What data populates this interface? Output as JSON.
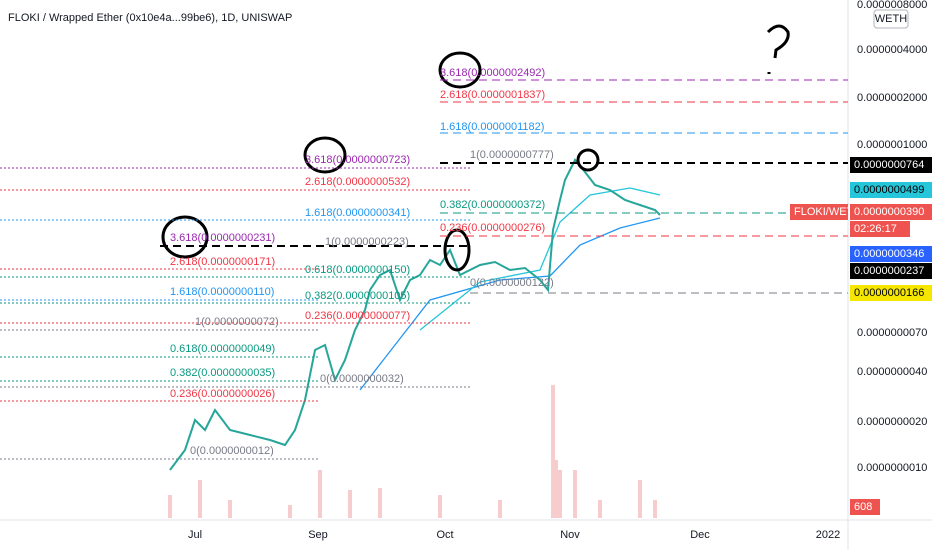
{
  "header": {
    "title": "FLOKI / Wrapped Ether (0x10e4a...99be6), 1D, UNISWAP"
  },
  "price_axis": {
    "unit": "WETH",
    "labels": [
      "0.0000008000",
      "0.0000004000",
      "0.0000002000",
      "0.0000001000",
      "0.0000000070",
      "0.0000000040",
      "0.0000000020",
      "0.0000000010"
    ]
  },
  "time_axis": {
    "labels": [
      "Jul",
      "Sep",
      "Oct",
      "Nov",
      "Dec",
      "2022"
    ]
  },
  "price_tags": [
    {
      "label": "0.0000000764",
      "color": "#000000"
    },
    {
      "label": "0.0000000499",
      "color": "#26c6da"
    },
    {
      "label": "FLOKI/WETH",
      "color": "#ef5350"
    },
    {
      "label": "0.0000000390",
      "color": "#ef5350"
    },
    {
      "label": "02:26:17",
      "color": "#ef5350"
    },
    {
      "label": "0.0000000346",
      "color": "#2962ff"
    },
    {
      "label": "0.0000000237",
      "color": "#000000"
    },
    {
      "label": "0.0000000166",
      "color": "#f5e700"
    },
    {
      "label": "608",
      "color": "#ef5350"
    }
  ],
  "fib_levels": [
    {
      "label": "3.618(0.0000002492)",
      "color": "#9c27b0"
    },
    {
      "label": "2.618(0.0000001837)",
      "color": "#f23645"
    },
    {
      "label": "1.618(0.0000001182)",
      "color": "#2196f3"
    },
    {
      "label": "1(0.0000000777)",
      "color": "#787b86"
    },
    {
      "label": "0.382(0.0000000372)",
      "color": "#089981"
    },
    {
      "label": "0.236(0.0000000276)",
      "color": "#f23645"
    },
    {
      "label": "0(0.0000000122)",
      "color": "#787b86"
    },
    {
      "label": "3.618(0.0000000723)",
      "color": "#9c27b0"
    },
    {
      "label": "2.618(0.0000000532)",
      "color": "#f23645"
    },
    {
      "label": "1.618(0.0000000341)",
      "color": "#2196f3"
    },
    {
      "label": "1(0.0000000223)",
      "color": "#787b86"
    },
    {
      "label": "0.618(0.0000000150)",
      "color": "#089981"
    },
    {
      "label": "0.382(0.0000000105)",
      "color": "#089981"
    },
    {
      "label": "0.236(0.0000000077)",
      "color": "#f23645"
    },
    {
      "label": "0(0.0000000032)",
      "color": "#787b86"
    },
    {
      "label": "3.618(0.0000000231)",
      "color": "#9c27b0"
    },
    {
      "label": "2.618(0.0000000171)",
      "color": "#f23645"
    },
    {
      "label": "1.618(0.0000000110)",
      "color": "#2196f3"
    },
    {
      "label": "1(0.0000000072)",
      "color": "#787b86"
    },
    {
      "label": "0.618(0.0000000049)",
      "color": "#089981"
    },
    {
      "label": "0.382(0.0000000035)",
      "color": "#089981"
    },
    {
      "label": "0.236(0.0000000026)",
      "color": "#f23645"
    },
    {
      "label": "0(0.0000000012)",
      "color": "#787b86"
    }
  ]
}
